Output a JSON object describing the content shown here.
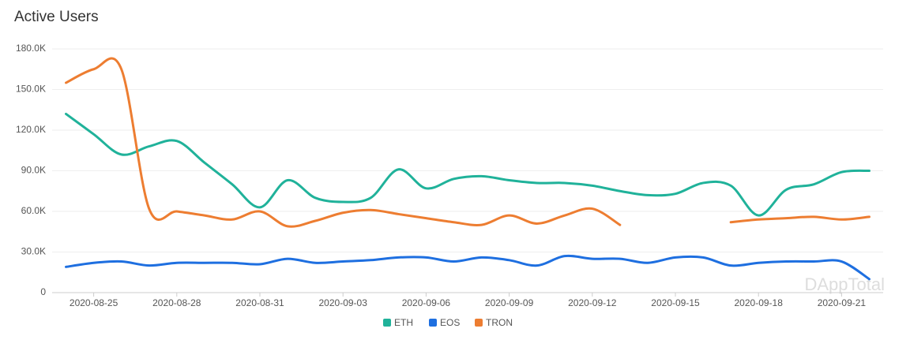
{
  "chart_data": {
    "type": "line",
    "title": "Active Users",
    "watermark": "DAppTotal",
    "categories": [
      null,
      "2020-08-25",
      null,
      null,
      "2020-08-28",
      null,
      null,
      "2020-08-31",
      null,
      null,
      "2020-09-03",
      null,
      null,
      "2020-09-06",
      null,
      null,
      "2020-09-09",
      null,
      null,
      "2020-09-12",
      null,
      null,
      "2020-09-15",
      null,
      null,
      "2020-09-18",
      null,
      null,
      "2020-09-21",
      null
    ],
    "series": [
      {
        "name": "ETH",
        "color": "#20b29a",
        "values": [
          132000,
          117000,
          102000,
          108000,
          112000,
          96000,
          80000,
          63000,
          83000,
          70000,
          67000,
          70000,
          91000,
          77000,
          84000,
          86000,
          83000,
          81000,
          81000,
          79000,
          75000,
          72000,
          73000,
          81000,
          79000,
          57000,
          76000,
          80000,
          89000,
          90000
        ]
      },
      {
        "name": "EOS",
        "color": "#1e6fe0",
        "values": [
          19000,
          22000,
          23000,
          20000,
          22000,
          22000,
          22000,
          21000,
          25000,
          22000,
          23000,
          24000,
          26000,
          26000,
          23000,
          26000,
          24000,
          20000,
          27000,
          25000,
          25000,
          22000,
          26000,
          26000,
          20000,
          22000,
          23000,
          23000,
          23000,
          10000
        ]
      },
      {
        "name": "TRON",
        "color": "#ed7d31",
        "values": [
          155000,
          165000,
          165000,
          62000,
          60000,
          57000,
          54000,
          60000,
          49000,
          53000,
          59000,
          61000,
          58000,
          55000,
          52000,
          50000,
          57000,
          51000,
          57000,
          62000,
          50000,
          null,
          null,
          null,
          52000,
          54000,
          55000,
          56000,
          54000,
          56000
        ]
      }
    ],
    "ylim": [
      0,
      180000
    ],
    "yticks": [
      0,
      {
        "value": 30000,
        "label": "30.0K"
      },
      {
        "value": 60000,
        "label": "60.0K"
      },
      {
        "value": 90000,
        "label": "90.0K"
      },
      {
        "value": 120000,
        "label": "120.0K"
      },
      {
        "value": 150000,
        "label": "150.0K"
      },
      {
        "value": 180000,
        "label": "180.0K"
      }
    ],
    "grid": true,
    "legend": "bottom"
  }
}
